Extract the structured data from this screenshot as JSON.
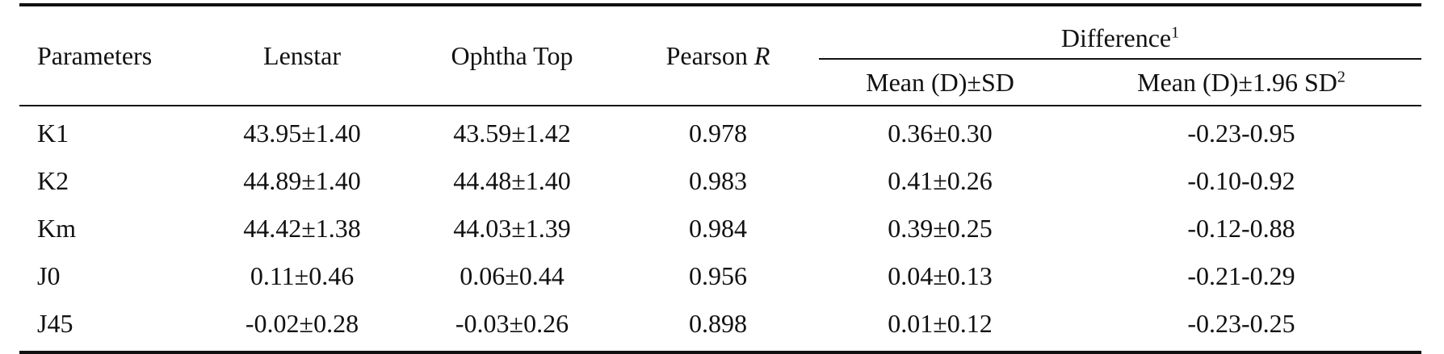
{
  "table": {
    "headers": {
      "parameters": "Parameters",
      "lenstar": "Lenstar",
      "ophtha_top": "Ophtha Top",
      "pearson_prefix": "Pearson ",
      "pearson_r": "R",
      "difference": "Difference",
      "difference_sup": "1",
      "mean_sd": "Mean (D)±SD",
      "mean_196": "Mean (D)±1.96 SD",
      "mean_196_sup": "2"
    },
    "rows": [
      {
        "param": "K1",
        "lenstar": "43.95±1.40",
        "ophtha": "43.59±1.42",
        "pearson": "0.978",
        "mean_sd": "0.36±0.30",
        "loa": "-0.23-0.95"
      },
      {
        "param": "K2",
        "lenstar": "44.89±1.40",
        "ophtha": "44.48±1.40",
        "pearson": "0.983",
        "mean_sd": "0.41±0.26",
        "loa": "-0.10-0.92"
      },
      {
        "param": "Km",
        "lenstar": "44.42±1.38",
        "ophtha": "44.03±1.39",
        "pearson": "0.984",
        "mean_sd": "0.39±0.25",
        "loa": "-0.12-0.88"
      },
      {
        "param": "J0",
        "lenstar": "0.11±0.46",
        "ophtha": "0.06±0.44",
        "pearson": "0.956",
        "mean_sd": "0.04±0.13",
        "loa": "-0.21-0.29"
      },
      {
        "param": "J45",
        "lenstar": "-0.02±0.28",
        "ophtha": "-0.03±0.26",
        "pearson": "0.898",
        "mean_sd": "0.01±0.12",
        "loa": "-0.23-0.25"
      }
    ]
  }
}
